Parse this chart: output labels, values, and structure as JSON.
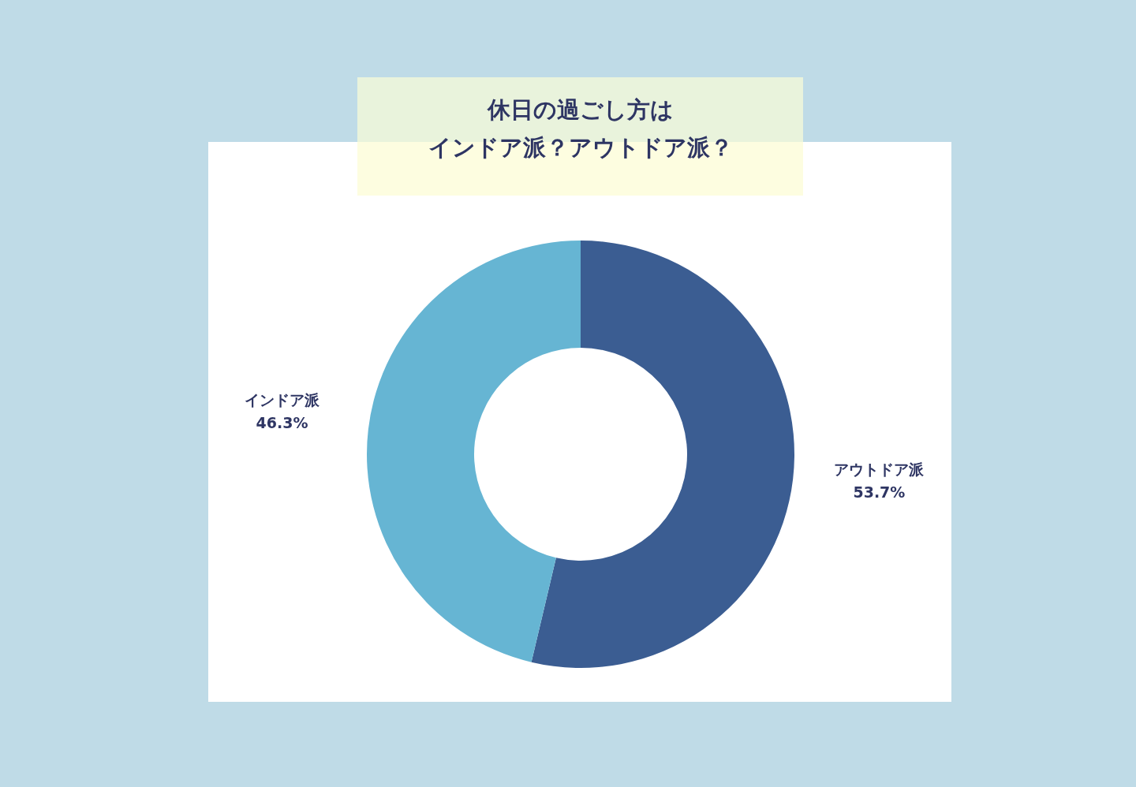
{
  "chart_data": {
    "type": "donut",
    "title": "休日の過ごし方は",
    "subtitle": "インドア派？アウトドア派？",
    "categories": [
      "アウトドア派",
      "インドア派"
    ],
    "values": [
      53.7,
      46.3
    ],
    "value_labels": [
      "53.7%",
      "46.3%"
    ],
    "colors": [
      "#3b5d92",
      "#66b5d3"
    ]
  }
}
